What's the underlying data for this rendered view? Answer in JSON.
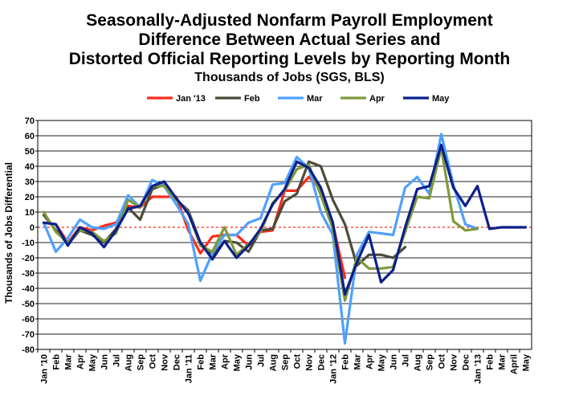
{
  "chart_data": {
    "type": "line",
    "title_lines": [
      "Seasonally-Adjusted Nonfarm Payroll Employment",
      "Difference Between Actual Series and",
      "Distorted Official Reporting Levels by Reporting Month"
    ],
    "subtitle": "Thousands of Jobs (SGS, BLS)",
    "ylabel": "Thousands of Jobs Differential",
    "xlabel": "",
    "ylim": [
      -80,
      70
    ],
    "yticks": [
      70,
      60,
      50,
      40,
      30,
      20,
      10,
      0,
      -10,
      -20,
      -30,
      -40,
      -50,
      -60,
      -70,
      -80
    ],
    "grid": true,
    "legend_position": "top",
    "categories": [
      "Jan '10",
      "Feb",
      "Mar",
      "Apr",
      "May",
      "Jun",
      "Jul",
      "Aug",
      "Sep",
      "Oct",
      "Nov",
      "Dec",
      "Jan '11",
      "Feb",
      "Mar",
      "Apr",
      "May",
      "Jun",
      "Jul",
      "Aug",
      "Sep",
      "Oct",
      "Nov",
      "Dec",
      "Jan '12",
      "Feb",
      "Mar",
      "Apr",
      "May",
      "Jun",
      "Jul",
      "Aug",
      "Sep",
      "Oct",
      "Nov",
      "Dec",
      "Jan '13",
      "Feb",
      "Mar",
      "April",
      "May"
    ],
    "series": [
      {
        "name": "Jan '13",
        "color": "#ff2a1a",
        "values": [
          3,
          2,
          -10,
          0,
          -2,
          1,
          3,
          14,
          13,
          20,
          20,
          20,
          -2,
          -17,
          -6,
          -5,
          -5,
          -12,
          -3,
          -2,
          24,
          24,
          33,
          25,
          2,
          -33,
          null,
          null,
          null,
          null,
          null,
          null,
          null,
          null,
          null,
          null,
          null,
          null,
          null,
          null,
          null
        ]
      },
      {
        "name": "Feb",
        "color": "#4b4b3a",
        "values": [
          8,
          -2,
          -11,
          -2,
          -5,
          -10,
          -1,
          13,
          5,
          25,
          28,
          18,
          11,
          -10,
          -19,
          -9,
          -10,
          -16,
          -2,
          -1,
          17,
          22,
          43,
          40,
          18,
          2,
          -25,
          -18,
          -18,
          -20,
          -13,
          null,
          null,
          null,
          null,
          null,
          null,
          null,
          null,
          null,
          null
        ]
      },
      {
        "name": "Mar",
        "color": "#4fa0ff",
        "values": [
          3,
          -16,
          -7,
          5,
          0,
          -1,
          2,
          21,
          13,
          31,
          27,
          15,
          2,
          -35,
          -17,
          -5,
          -5,
          3,
          6,
          28,
          29,
          46,
          39,
          10,
          -5,
          -76,
          -18,
          -3,
          -4,
          -5,
          26,
          33,
          22,
          61,
          28,
          2,
          -1,
          null,
          null,
          null,
          null
        ]
      },
      {
        "name": "Apr",
        "color": "#7e9a3a",
        "values": [
          10,
          -3,
          -10,
          -2,
          -3,
          -9,
          -4,
          18,
          13,
          27,
          27,
          18,
          10,
          -12,
          -16,
          0,
          -18,
          -11,
          -3,
          16,
          24,
          38,
          41,
          21,
          -1,
          -48,
          -20,
          -27,
          -27,
          -26,
          -3,
          20,
          19,
          52,
          4,
          -2,
          -1,
          null,
          null,
          null,
          null
        ]
      },
      {
        "name": "May",
        "color": "#0c1f8a",
        "values": [
          3,
          2,
          -12,
          0,
          -4,
          -13,
          -2,
          12,
          14,
          27,
          30,
          19,
          9,
          -10,
          -21,
          -9,
          -20,
          -12,
          -1,
          15,
          25,
          43,
          39,
          26,
          3,
          -44,
          -23,
          -5,
          -36,
          -28,
          0,
          25,
          27,
          54,
          26,
          14,
          27,
          -1,
          0,
          0,
          0
        ]
      }
    ]
  }
}
